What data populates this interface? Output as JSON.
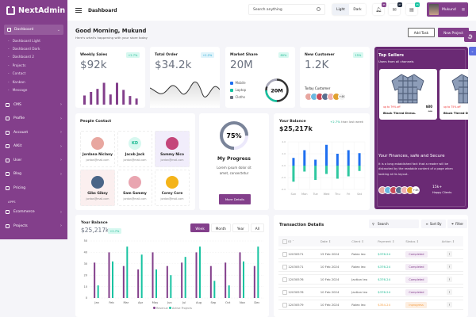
{
  "app": {
    "name": "NextAdmin"
  },
  "sidebar": {
    "active": {
      "label": "Dashboard"
    },
    "sub": [
      "Dashboard Light",
      "Dashboard Dark",
      "Dashboard 2",
      "Projects",
      "Contact",
      "Kanban",
      "Message"
    ],
    "items": [
      {
        "label": "CMS"
      },
      {
        "label": "Profile"
      },
      {
        "label": "Account"
      },
      {
        "label": "AIKit"
      },
      {
        "label": "User"
      },
      {
        "label": "Blog"
      },
      {
        "label": "Pricing"
      }
    ],
    "section": "APPS",
    "apps": [
      {
        "label": "Ecommerce"
      },
      {
        "label": "Projects"
      }
    ]
  },
  "topbar": {
    "breadcrumb": "Dashboard",
    "search_placeholder": "Search anything",
    "mode_light": "Light",
    "mode_dark": "Dark",
    "badges": [
      {
        "count": "35",
        "color": "#833f8b"
      },
      {
        "count": "27",
        "color": "#1e293b"
      },
      {
        "count": "25",
        "color": "#17c3a1"
      }
    ],
    "user": "Mukund"
  },
  "greeting": {
    "title": "Good Morning, Mukund",
    "subtitle": "Here's what's happening with your store today"
  },
  "actions": {
    "add_task": "Add Task",
    "new_project": "New Project"
  },
  "weekly_sales": {
    "title": "Weekly Sales",
    "value": "$92k",
    "badge": "+2.7%",
    "bars": [
      0.36,
      0.5,
      0.62,
      0.86,
      0.4,
      0.86,
      0.58,
      0.34,
      0.24
    ]
  },
  "total_order": {
    "title": "Total Order",
    "value": "$34.2k",
    "badge": "+1.2%"
  },
  "market_share": {
    "title": "Market Share",
    "value": "20M",
    "badge": "80%",
    "center": "20M",
    "legend": [
      {
        "label": "Mobile",
        "color": "#1e6ff0"
      },
      {
        "label": "Laptop",
        "color": "#17c3a1"
      },
      {
        "label": "Cloths",
        "color": "#6b7280"
      }
    ]
  },
  "new_customer": {
    "title": "New Customer",
    "value": "1.2K",
    "badge": "15%",
    "sub": "Today Customer",
    "more": "+4K"
  },
  "top_sellers": {
    "title": "Top Sellers",
    "subtitle": "Users from all channels",
    "products": [
      {
        "discount": "up to 79% off",
        "price": "$80",
        "old": "$95",
        "name": "Black Tiered Dress."
      },
      {
        "discount": "up to 75% off",
        "name": "Black Tiered D"
      }
    ],
    "heading": "Your Finances, safe and Secure",
    "text": "It is a long established fact that a reader will be distracted by the readable content of a page when looking at its layout.",
    "more": "+4K",
    "count": "15k+",
    "count_label": "Happy Clients"
  },
  "contacts": {
    "title": "People Contact",
    "people": [
      {
        "name": "Jordana Niclany",
        "email": "jordan@mail.com",
        "bg": "#fff",
        "pic": "#e8a7a0"
      },
      {
        "name": "Jacob Jack",
        "email": "jordan@mail.com",
        "bg": "#fff",
        "initials": "KD"
      },
      {
        "name": "Sammy Nico",
        "email": "jordan@mail.com",
        "bg": "#f1edfb",
        "pic": "#c4467a"
      },
      {
        "name": "Gibs Gibsy",
        "email": "jordan@mail.com",
        "bg": "#fbefef",
        "pic": "#4a6587"
      },
      {
        "name": "Sam Sammy",
        "email": "jordan@mail.com",
        "bg": "#fff",
        "pic": "#e9a5b0"
      },
      {
        "name": "Corey Core",
        "email": "jordan@mail.com",
        "bg": "#fff",
        "pic": "#f4b41a"
      }
    ]
  },
  "progress": {
    "value": "75%",
    "fraction": 0.75,
    "title": "My Progress",
    "text": "Lorem ipsum dolor sit amet, consectetur",
    "button": "More Details"
  },
  "balance_small": {
    "title": "Your Balance",
    "value": "$25,217k",
    "change": "+2.7%",
    "change_text": "than last week"
  },
  "balance_big": {
    "title": "Your Balance",
    "value": "$25,217k",
    "badge": "+2.7%",
    "tabs": [
      "Week",
      "Month",
      "Year",
      "All"
    ]
  },
  "transactions": {
    "title": "Transaction Details",
    "search": "Search",
    "sort": "Sort By",
    "filter": "Filter",
    "columns": [
      "ID",
      "Date",
      "Client",
      "Payment",
      "Status",
      "Action"
    ],
    "rows": [
      {
        "id": "12030571",
        "date": "15 Feb 2024",
        "client": "Rolex leo",
        "payment": "$376.24",
        "status": "Completed"
      },
      {
        "id": "12030571",
        "date": "10 Feb 2024",
        "client": "Rolex leo",
        "payment": "$376.24",
        "status": "Completed"
      },
      {
        "id": "12030576",
        "date": "10 Feb 2024",
        "client": "Jaction leo",
        "payment": "$376.24",
        "status": "Completed"
      },
      {
        "id": "12030576",
        "date": "10 Feb 2024",
        "client": "Jaction leo",
        "payment": "$376.24",
        "status": "Completed"
      },
      {
        "id": "12030579",
        "date": "10 Feb 2024",
        "client": "Rolex leo",
        "payment": "$354.24",
        "status": "Inprogress"
      }
    ]
  },
  "chart_data": [
    {
      "type": "bar",
      "title": "Your Balance",
      "categories": [
        "Sun",
        "Mon",
        "Tue",
        "Wed",
        "Thu",
        "Fri",
        "Sat"
      ],
      "series": [
        {
          "name": "positive",
          "color": "#1e6ff0",
          "values": [
            1.3,
            2.6,
            1.0,
            3.5,
            2.0,
            2.6,
            2.1
          ]
        },
        {
          "name": "negative",
          "color": "#2fc8a0",
          "values": [
            -2.7,
            -1.0,
            -2.4,
            -1.4,
            -2.2,
            -1.8,
            -0.9
          ]
        }
      ],
      "ylim": [
        -4,
        4
      ],
      "yticks": [
        "4.0",
        "2.0",
        "0.0",
        "-2.0",
        "-4.0"
      ]
    },
    {
      "type": "bar",
      "title": "Your Balance",
      "categories": [
        "Jan",
        "Feb",
        "Mar",
        "Apr",
        "May",
        "Jun",
        "Jul",
        "Aug",
        "Sep",
        "Oct",
        "Nov",
        "Dec"
      ],
      "series": [
        {
          "name": "Revenue",
          "color": "#833f8b",
          "values": [
            31,
            40,
            28,
            25,
            40,
            28,
            31,
            40,
            28,
            31,
            40,
            28
          ]
        },
        {
          "name": "Active Projects",
          "color": "#17c3a1",
          "values": [
            11,
            32,
            45,
            38,
            25,
            20,
            36,
            45,
            15,
            11,
            32,
            45
          ]
        }
      ],
      "ylim": [
        0,
        50
      ],
      "yticks": [
        "50",
        "40",
        "30",
        "20",
        "10",
        "0"
      ]
    }
  ]
}
